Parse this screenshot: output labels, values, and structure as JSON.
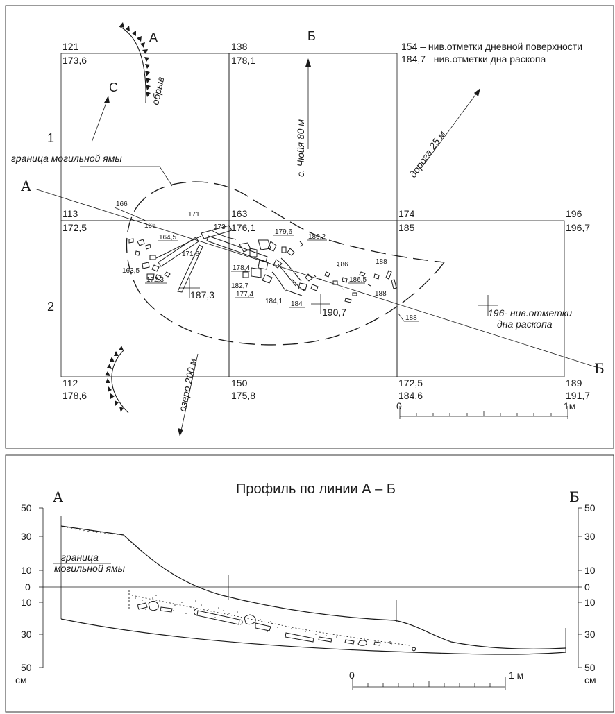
{
  "plan": {
    "legend": {
      "line1": "154 – нив.отметки дневной поверхности",
      "line2": "184,7– нив.отметки дна раскопа"
    },
    "column_letters": [
      "А",
      "Б"
    ],
    "row_numbers": [
      "1",
      "2"
    ],
    "north_label": "С",
    "cliff_label": "обрыв",
    "village_label": "с. Чюйя 80 м",
    "road_label": "дорога 25 м",
    "lake_label": "озеро 200 м",
    "grave_label": "граница могильной ямы",
    "section_ends": [
      "А",
      "Б"
    ],
    "bottom_mark_note": "196- нив.отметки дна раскопа",
    "grid_marks": [
      {
        "surface": "121",
        "bottom": "173,6"
      },
      {
        "surface": "138",
        "bottom": "178,1"
      },
      {
        "surface": "113",
        "bottom": "172,5"
      },
      {
        "surface": "163",
        "bottom": "176,1"
      },
      {
        "surface": "174",
        "bottom": "185"
      },
      {
        "surface": "196",
        "bottom": "196,7"
      },
      {
        "surface": "112",
        "bottom": "178,6"
      },
      {
        "surface": "150",
        "bottom": "175,8"
      },
      {
        "surface": "172,5",
        "bottom": "184,6"
      },
      {
        "surface": "189",
        "bottom": "191,7"
      }
    ],
    "point_marks": [
      "166",
      "166",
      "171",
      "173",
      "164,5",
      "171,6",
      "163,5",
      "172,3",
      "179,6",
      "180,2",
      "178,4",
      "182,7",
      "177,4",
      "186",
      "188",
      "186,5",
      "188",
      "184,1",
      "184",
      "188"
    ],
    "cross_marks": [
      "187,3",
      "190,7"
    ],
    "scale": {
      "zero": "0",
      "end": "1м"
    }
  },
  "profile": {
    "title": "Профиль по линии А – Б",
    "end_left": "А",
    "end_right": "Б",
    "left_ticks": [
      "50",
      "30",
      "10",
      "0",
      "10",
      "30",
      "50"
    ],
    "right_ticks": [
      "50",
      "30",
      "10",
      "0",
      "10",
      "30",
      "50"
    ],
    "unit_left": "см",
    "unit_right": "см",
    "grave_label_line1": "граница",
    "grave_label_line2": "могильной ямы",
    "scale": {
      "zero": "0",
      "end": "1 м"
    }
  }
}
